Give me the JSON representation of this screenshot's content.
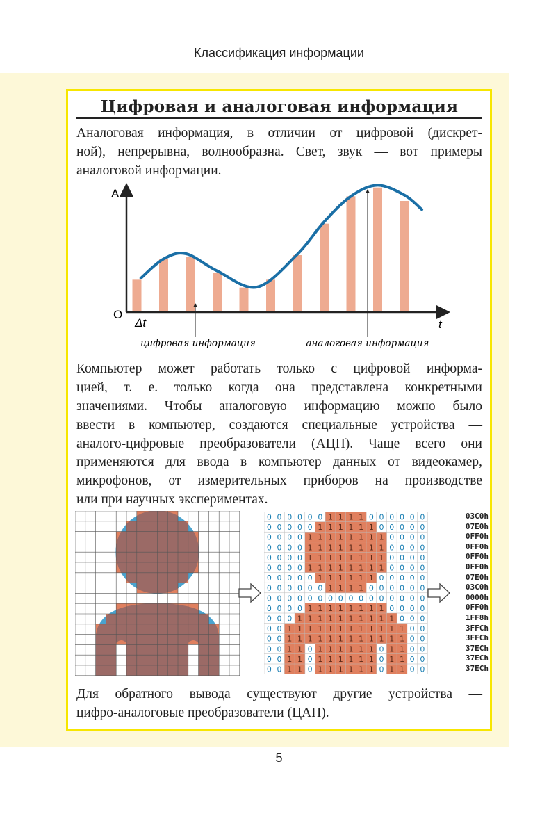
{
  "running_header": "Классификация информации",
  "title": "Цифровая и аналоговая информация",
  "paragraph1": [
    "Аналоговая информация, в отличии от цифровой (дискрет-",
    "ной), непрерывна, волнообразна. Свет, звук — вот примеры",
    "аналоговой информации."
  ],
  "chart_data": {
    "type": "bar",
    "title": "",
    "xlabel": "t",
    "ylabel": "A",
    "origin_label": "O",
    "step_label": "Δt",
    "bars": [
      1.4,
      2.28,
      2.38,
      1.68,
      1.06,
      1.4,
      2.46,
      3.82,
      5.0,
      5.38,
      4.8
    ],
    "curve": {
      "t": [
        0.15,
        1.0,
        1.84,
        3.0,
        4.49,
        6.0,
        7.0,
        8.0,
        8.99,
        10.0,
        10.65
      ],
      "A": [
        1.47,
        2.3,
        2.52,
        1.78,
        1.08,
        2.5,
        3.9,
        5.0,
        5.48,
        5.05,
        4.43
      ]
    },
    "annotations": [
      "цифровая информация",
      "аналоговая информация"
    ],
    "colors": {
      "bars": "#eeab91",
      "curve": "#1a6fa6"
    }
  },
  "paragraph2": [
    "Компьютер может работать только с цифровой информа-",
    "цией, т. е. только когда она представлена конкретными",
    "значениями. Чтобы аналоговую информацию можно было",
    "ввести в компьютер, создаются специальные устройства —",
    "аналого-цифровые преобразователи (АЦП). Чаще всего они",
    "применяются для ввода в компьютер данных от видеокамер,",
    "микрофонов, от измерительных приборов на производстве",
    "или при научных экспериментах."
  ],
  "bitmap_rows": [
    "0000001111000000",
    "0000011111100000",
    "0000111111110000",
    "0000111111110000",
    "0000111111110000",
    "0000111111110000",
    "0000011111100000",
    "0000001111000000",
    "0000000000000000",
    "0000111111110000",
    "0001111111111000",
    "0011111111111100",
    "0011111111111100",
    "0011011111101100",
    "0011011111101100",
    "0011011111101100"
  ],
  "hex_values": [
    "03C0h",
    "07E0h",
    "0FF0h",
    "0FF0h",
    "0FF0h",
    "0FF0h",
    "07E0h",
    "03C0h",
    "0000h",
    "0FF0h",
    "1FF8h",
    "3FFCh",
    "3FFCh",
    "37ECh",
    "37ECh",
    "37ECh"
  ],
  "colors": {
    "pixel_on": "#e0805f",
    "shape": "#9b6a66",
    "shape_overflow": "#4aa3cf",
    "digit": "#1a7fb3",
    "border": "#f7e600",
    "band": "#fdf8d8"
  },
  "paragraph3": [
    "Для обратного вывода существуют другие устройства —",
    "цифро-аналоговые преобразователи (ЦАП)."
  ],
  "page_number": "5"
}
